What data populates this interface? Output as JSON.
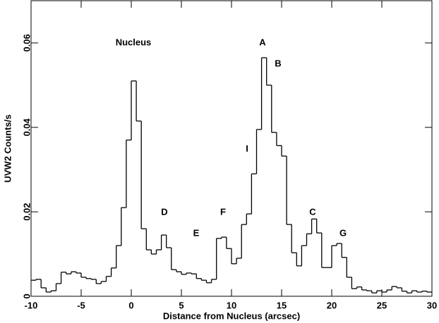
{
  "chart_data": {
    "type": "histogram",
    "xlabel": "Distance from Nucleus (arcsec)",
    "ylabel": "UVW2 Counts/s",
    "bins": [
      -10,
      -9.5,
      -9,
      -8.5,
      -8,
      -7.5,
      -7,
      -6.5,
      -6,
      -5.5,
      -5,
      -4.5,
      -4,
      -3.5,
      -3,
      -2.5,
      -2,
      -1.5,
      -1,
      -0.5,
      0,
      0.5,
      1,
      1.5,
      2,
      2.5,
      3,
      3.5,
      4,
      4.5,
      5,
      5.5,
      6,
      6.5,
      7,
      7.5,
      8,
      8.5,
      9,
      9.5,
      10,
      10.5,
      11,
      11.5,
      12,
      12.5,
      13,
      13.5,
      14,
      14.5,
      15,
      15.5,
      16,
      16.5,
      17,
      17.5,
      18,
      18.5,
      19,
      19.5,
      20,
      20.5,
      21,
      21.5,
      22,
      22.5,
      23,
      23.5,
      24,
      24.5,
      25,
      25.5,
      26,
      26.5,
      27,
      27.5,
      28,
      28.5,
      29,
      29.5,
      30
    ],
    "values": [
      0.0038,
      0.004,
      0.002,
      0.001,
      0.0013,
      0.003,
      0.0057,
      0.0053,
      0.0058,
      0.0055,
      0.0045,
      0.0042,
      0.004,
      0.003,
      0.0035,
      0.0047,
      0.0067,
      0.012,
      0.021,
      0.037,
      0.051,
      0.0415,
      0.016,
      0.011,
      0.01,
      0.011,
      0.0145,
      0.0115,
      0.0063,
      0.0058,
      0.0052,
      0.0055,
      0.0053,
      0.0042,
      0.0038,
      0.0032,
      0.004,
      0.0137,
      0.014,
      0.0113,
      0.0077,
      0.009,
      0.017,
      0.0195,
      0.029,
      0.0395,
      0.0565,
      0.05,
      0.0388,
      0.0357,
      0.0332,
      0.017,
      0.0103,
      0.0072,
      0.012,
      0.0148,
      0.0183,
      0.015,
      0.0068,
      0.0068,
      0.012,
      0.0125,
      0.0092,
      0.0045,
      0.0018,
      0.0022,
      0.0015,
      0.0013,
      0.0008,
      0.0013,
      0.001,
      0.0015,
      0.0023,
      0.002,
      0.0012,
      0.0008,
      0.0013,
      0.001,
      0.0012,
      0.001
    ],
    "color": "#000000",
    "xlim": [
      -10,
      30
    ],
    "xticks": [
      -10,
      -5,
      0,
      5,
      10,
      15,
      20,
      25,
      30
    ],
    "ylim": [
      0,
      0.07
    ],
    "yticks": [
      0,
      0.02,
      0.04,
      0.06
    ],
    "annotations": [
      "Nucleus",
      "A",
      "B",
      "I",
      "D",
      "E",
      "F",
      "C",
      "G"
    ]
  }
}
